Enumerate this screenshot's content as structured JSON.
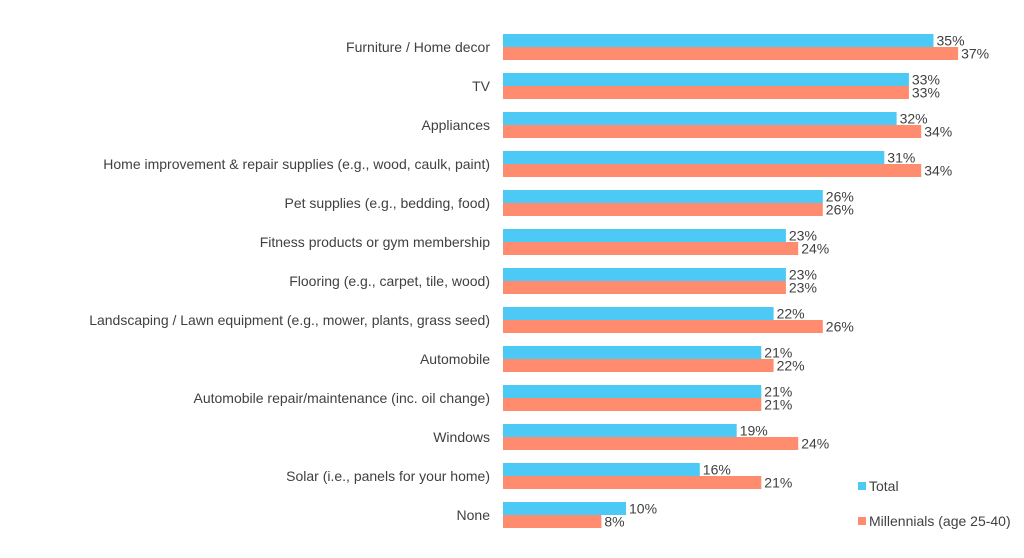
{
  "chart_data": {
    "type": "bar",
    "orientation": "horizontal",
    "categories": [
      "Furniture / Home decor",
      "TV",
      "Appliances",
      "Home improvement & repair supplies (e.g., wood, caulk, paint)",
      "Pet supplies (e.g., bedding, food)",
      "Fitness products or gym membership",
      "Flooring (e.g., carpet, tile, wood)",
      "Landscaping / Lawn equipment (e.g., mower, plants, grass seed)",
      "Automobile",
      "Automobile repair/maintenance (inc. oil change)",
      "Windows",
      "Solar (i.e., panels for your home)",
      "None"
    ],
    "series": [
      {
        "name": "Total",
        "color": "#4dc9f6",
        "values": [
          35,
          33,
          32,
          31,
          26,
          23,
          23,
          22,
          21,
          21,
          19,
          16,
          10
        ],
        "labels": [
          "35%",
          "33%",
          "32%",
          "31%",
          "26%",
          "23%",
          "23%",
          "22%",
          "21%",
          "21%",
          "19%",
          "16%",
          "10%"
        ]
      },
      {
        "name": "Millennials (age 25-40)",
        "color": "#ff8c6e",
        "values": [
          37,
          33,
          34,
          34,
          26,
          24,
          23,
          26,
          22,
          21,
          24,
          21,
          8
        ],
        "labels": [
          "37%",
          "33%",
          "34%",
          "34%",
          "26%",
          "24%",
          "23%",
          "26%",
          "22%",
          "21%",
          "24%",
          "21%",
          "8%"
        ]
      }
    ],
    "value_unit": "%",
    "xlim": [
      0,
      40
    ],
    "grid": false,
    "legend_position": "bottom-right",
    "title": "",
    "xlabel": "",
    "ylabel": ""
  }
}
